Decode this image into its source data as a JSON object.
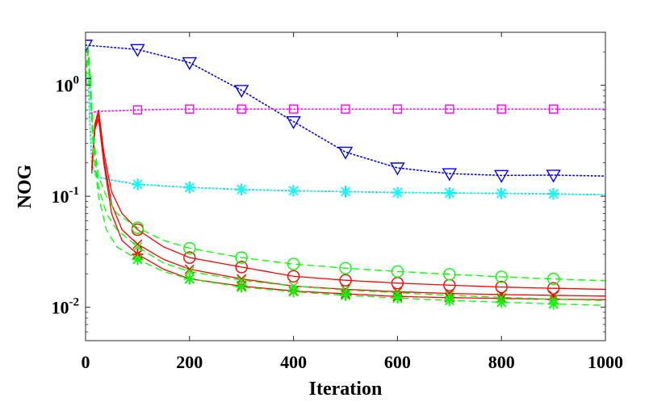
{
  "chart_data": {
    "type": "line",
    "title": "",
    "xlabel": "Iteration",
    "ylabel": "NOG",
    "xscale": "linear",
    "yscale": "log",
    "xlim": [
      0,
      1000
    ],
    "ylim": [
      0.005,
      3
    ],
    "xticks": [
      0,
      200,
      400,
      600,
      800,
      1000
    ],
    "xtick_labels": [
      "0",
      "200",
      "400",
      "600",
      "800",
      "1000"
    ],
    "yticks": [
      0.01,
      0.1,
      1
    ],
    "ytick_labels": [
      {
        "base": "10",
        "exp": "-2"
      },
      {
        "base": "10",
        "exp": "-1"
      },
      {
        "base": "10",
        "exp": "0"
      }
    ],
    "grid": false,
    "legend": "none",
    "colors": {
      "blue": "#0000ff",
      "magenta": "#ff00ff",
      "black": "#000000",
      "cyan": "#00ffff",
      "red": "#ff0000",
      "green": "#00ff00"
    },
    "series": [
      {
        "name": "blue-triangle",
        "color": "#0000ff",
        "style": "dotted",
        "marker": "triangle-down",
        "x": [
          0,
          100,
          200,
          300,
          400,
          500,
          600,
          700,
          800,
          900,
          1000
        ],
        "y": [
          2.3,
          2.1,
          1.6,
          0.9,
          0.47,
          0.25,
          0.18,
          0.16,
          0.154,
          0.155,
          0.152
        ],
        "marker_x": [
          0,
          100,
          200,
          300,
          400,
          500,
          600,
          700,
          800,
          900
        ]
      },
      {
        "name": "magenta-square",
        "color": "#ff00ff",
        "style": "dotted",
        "marker": "square",
        "x": [
          10,
          20,
          100,
          200,
          300,
          400,
          500,
          600,
          700,
          800,
          900,
          1000
        ],
        "y": [
          0.56,
          0.58,
          0.6,
          0.61,
          0.61,
          0.61,
          0.61,
          0.61,
          0.61,
          0.61,
          0.61,
          0.61
        ],
        "marker_x": [
          100,
          200,
          300,
          400,
          500,
          600,
          700,
          800,
          900
        ]
      },
      {
        "name": "black-plus",
        "color": "#000000",
        "style": "dotted",
        "marker": "plus",
        "x": [
          0,
          5,
          8,
          12,
          20,
          50,
          100,
          200,
          300,
          400,
          500,
          600,
          700,
          800,
          900,
          1000
        ],
        "y": [
          1.15,
          1.2,
          0.5,
          0.2,
          0.15,
          0.14,
          0.128,
          0.12,
          0.115,
          0.112,
          0.11,
          0.108,
          0.107,
          0.106,
          0.105,
          0.103
        ],
        "marker_x": [
          0,
          100,
          200,
          300,
          400,
          500,
          600,
          700,
          800,
          900
        ]
      },
      {
        "name": "cyan-star",
        "color": "#00ffff",
        "style": "dotted",
        "marker": "asterisk",
        "x": [
          0,
          5,
          8,
          12,
          20,
          50,
          100,
          200,
          300,
          400,
          500,
          600,
          700,
          800,
          900,
          1000
        ],
        "y": [
          1.15,
          1.2,
          0.5,
          0.2,
          0.15,
          0.14,
          0.128,
          0.12,
          0.115,
          0.112,
          0.11,
          0.108,
          0.107,
          0.106,
          0.105,
          0.103
        ],
        "marker_x": [
          100,
          200,
          300,
          400,
          500,
          600,
          700,
          800,
          900
        ]
      },
      {
        "name": "red-circle",
        "color": "#ff0000",
        "style": "solid",
        "marker": "circle",
        "x": [
          12,
          18,
          25,
          35,
          50,
          70,
          100,
          150,
          200,
          300,
          400,
          500,
          600,
          700,
          800,
          900,
          1000
        ],
        "y": [
          0.18,
          0.45,
          0.6,
          0.25,
          0.11,
          0.07,
          0.05,
          0.035,
          0.028,
          0.023,
          0.019,
          0.0175,
          0.0165,
          0.0158,
          0.0152,
          0.0148,
          0.0145
        ],
        "marker_x": [
          100,
          200,
          300,
          400,
          500,
          600,
          700,
          800,
          900
        ]
      },
      {
        "name": "red-x",
        "color": "#ff0000",
        "style": "solid",
        "marker": "x",
        "x": [
          12,
          18,
          25,
          35,
          50,
          70,
          100,
          150,
          200,
          300,
          400,
          500,
          600,
          700,
          800,
          900,
          1000
        ],
        "y": [
          0.17,
          0.42,
          0.55,
          0.22,
          0.085,
          0.05,
          0.037,
          0.027,
          0.022,
          0.018,
          0.0155,
          0.0145,
          0.0138,
          0.0133,
          0.013,
          0.0128,
          0.0126
        ],
        "marker_x": [
          100,
          200,
          300,
          400,
          500,
          600,
          700,
          800,
          900
        ]
      },
      {
        "name": "red-asterisk",
        "color": "#ff0000",
        "style": "solid",
        "marker": "asterisk",
        "x": [
          12,
          18,
          25,
          35,
          50,
          70,
          100,
          150,
          200,
          300,
          400,
          500,
          600,
          700,
          800,
          900,
          1000
        ],
        "y": [
          0.16,
          0.4,
          0.5,
          0.2,
          0.07,
          0.04,
          0.03,
          0.022,
          0.018,
          0.0155,
          0.014,
          0.0132,
          0.0125,
          0.0122,
          0.012,
          0.0118,
          0.0117
        ],
        "marker_x": [
          100,
          200,
          300,
          400,
          500,
          600,
          700,
          800,
          900
        ]
      },
      {
        "name": "green-circle",
        "color": "#00ff00",
        "style": "dashed",
        "marker": "circle",
        "x": [
          0,
          5,
          10,
          15,
          25,
          40,
          60,
          100,
          150,
          200,
          300,
          400,
          500,
          600,
          700,
          800,
          900,
          1000
        ],
        "y": [
          1.15,
          2.3,
          1.0,
          0.35,
          0.15,
          0.1,
          0.07,
          0.052,
          0.04,
          0.034,
          0.028,
          0.0245,
          0.0225,
          0.021,
          0.0198,
          0.0188,
          0.018,
          0.0173
        ],
        "marker_x": [
          0,
          100,
          200,
          300,
          400,
          500,
          600,
          700,
          800,
          900
        ]
      },
      {
        "name": "green-x",
        "color": "#00ff00",
        "style": "dashed",
        "marker": "x",
        "x": [
          0,
          5,
          10,
          15,
          25,
          40,
          60,
          100,
          150,
          200,
          300,
          400,
          500,
          600,
          700,
          800,
          900,
          1000
        ],
        "y": [
          1.15,
          2.0,
          0.8,
          0.3,
          0.12,
          0.07,
          0.05,
          0.035,
          0.025,
          0.021,
          0.0175,
          0.0155,
          0.0143,
          0.0135,
          0.0128,
          0.0123,
          0.0118,
          0.0115
        ],
        "marker_x": [
          100,
          200,
          300,
          400,
          500,
          600,
          700,
          800,
          900
        ]
      },
      {
        "name": "green-asterisk",
        "color": "#00ff00",
        "style": "dashed",
        "marker": "asterisk",
        "x": [
          0,
          5,
          10,
          15,
          25,
          40,
          60,
          100,
          150,
          200,
          300,
          400,
          500,
          600,
          700,
          800,
          900,
          1000
        ],
        "y": [
          1.15,
          1.8,
          0.7,
          0.25,
          0.1,
          0.05,
          0.035,
          0.027,
          0.021,
          0.018,
          0.0152,
          0.0138,
          0.0128,
          0.0121,
          0.0115,
          0.0111,
          0.0107,
          0.0104
        ],
        "marker_x": [
          100,
          200,
          300,
          400,
          500,
          600,
          700,
          800,
          900
        ]
      }
    ]
  }
}
